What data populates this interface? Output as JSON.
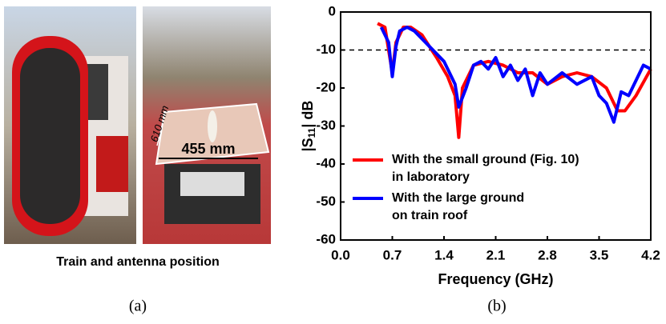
{
  "chart_data": {
    "type": "line",
    "x_label": "Frequency (GHz)",
    "y_label_parts": [
      "|S",
      "11",
      "| dB"
    ],
    "xlim": [
      0,
      4.2
    ],
    "xticks": [
      {
        "value": 0,
        "label": "0.0"
      },
      0.7,
      1.4,
      2.1,
      2.8,
      3.5,
      4.2
    ],
    "ylim": [
      -60,
      0
    ],
    "yticks": [
      0,
      -10,
      -20,
      -30,
      -40,
      -50,
      -60
    ],
    "hline": -10,
    "series": [
      {
        "name": "With the small ground (Fig. 10) in laboratory",
        "name_lines": [
          "With the small ground (Fig. 10)",
          "in laboratory"
        ],
        "color": "#ff0000",
        "x": [
          0.5,
          0.6,
          0.7,
          0.75,
          0.85,
          0.95,
          1.1,
          1.3,
          1.45,
          1.55,
          1.6,
          1.65,
          1.8,
          2.0,
          2.2,
          2.4,
          2.6,
          2.8,
          3.0,
          3.2,
          3.4,
          3.6,
          3.75,
          3.85,
          4.0,
          4.2
        ],
        "values": [
          -3,
          -4,
          -16,
          -8,
          -4,
          -4,
          -6,
          -12,
          -17,
          -22,
          -33,
          -20,
          -14,
          -13,
          -14,
          -16,
          -16,
          -19,
          -17,
          -16,
          -17,
          -20,
          -26,
          -26,
          -22,
          -15
        ]
      },
      {
        "name": "With the large ground on train roof",
        "name_lines": [
          "With the large ground",
          "on train roof"
        ],
        "color": "#0000ff",
        "x": [
          0.55,
          0.65,
          0.7,
          0.75,
          0.8,
          0.9,
          1.0,
          1.2,
          1.4,
          1.55,
          1.6,
          1.7,
          1.8,
          1.9,
          2.0,
          2.1,
          2.2,
          2.3,
          2.4,
          2.5,
          2.6,
          2.7,
          2.8,
          3.0,
          3.2,
          3.4,
          3.5,
          3.6,
          3.7,
          3.8,
          3.9,
          4.0,
          4.1,
          4.2
        ],
        "values": [
          -4,
          -8,
          -17,
          -9,
          -5,
          -4,
          -5,
          -9,
          -13,
          -19,
          -25,
          -20,
          -14,
          -13,
          -15,
          -12,
          -17,
          -14,
          -18,
          -15,
          -22,
          -16,
          -19,
          -16,
          -19,
          -17,
          -22,
          -24,
          -29,
          -21,
          -22,
          -18,
          -14,
          -15
        ]
      }
    ]
  },
  "figure": {
    "panel_a_caption": "Train and antenna position",
    "panel_a_label": "(a)",
    "panel_b_label": "(b)",
    "photo_labels": [
      "610 mm",
      "455 mm"
    ]
  }
}
